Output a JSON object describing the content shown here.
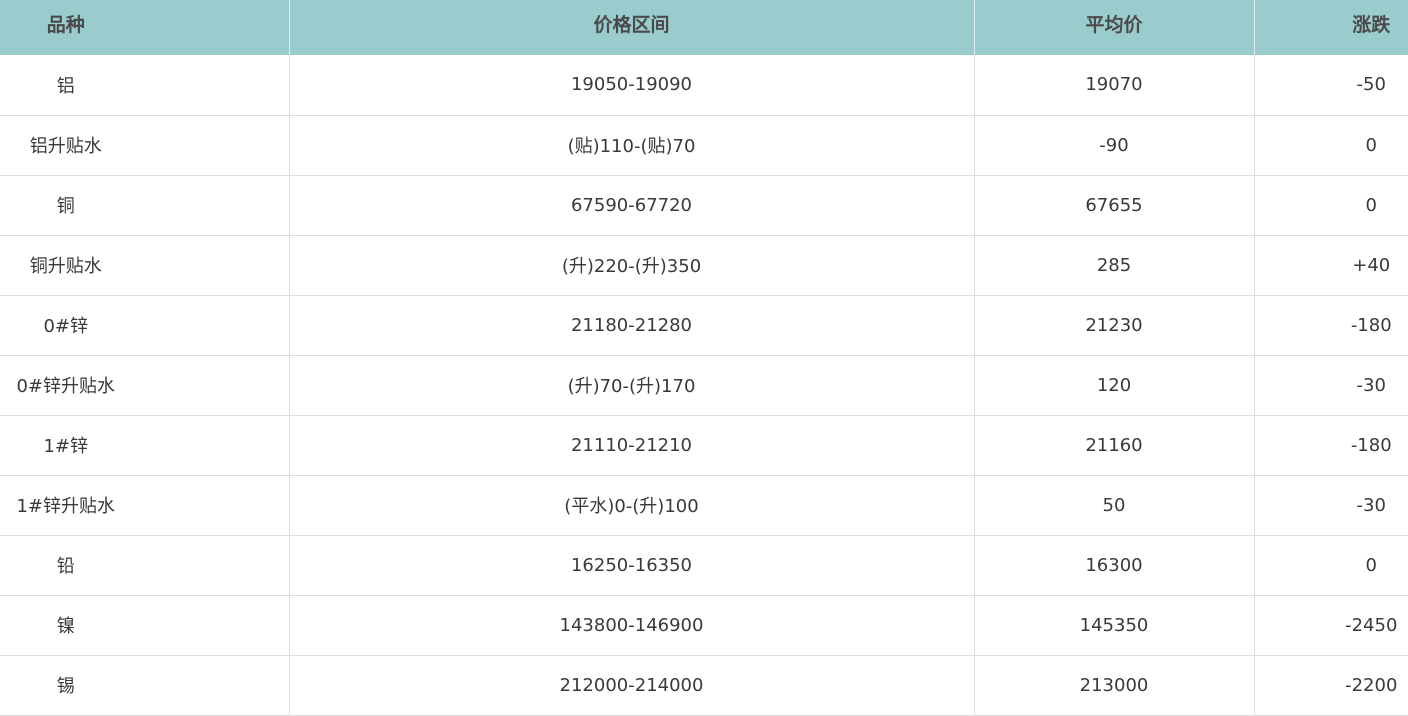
{
  "table": {
    "headers": [
      "品种",
      "价格区间",
      "平均价",
      "涨跌"
    ],
    "rows": [
      [
        "铝",
        "19050-19090",
        "19070",
        "-50"
      ],
      [
        "铝升贴水",
        "(贴)110-(贴)70",
        "-90",
        "0"
      ],
      [
        "铜",
        "67590-67720",
        "67655",
        "0"
      ],
      [
        "铜升贴水",
        "(升)220-(升)350",
        "285",
        "+40"
      ],
      [
        "0#锌",
        "21180-21280",
        "21230",
        "-180"
      ],
      [
        "0#锌升贴水",
        "(升)70-(升)170",
        "120",
        "-30"
      ],
      [
        "1#锌",
        "21110-21210",
        "21160",
        "-180"
      ],
      [
        "1#锌升贴水",
        "(平水)0-(升)100",
        "50",
        "-30"
      ],
      [
        "铅",
        "16250-16350",
        "16300",
        "0"
      ],
      [
        "镍",
        "143800-146900",
        "145350",
        "-2450"
      ],
      [
        "锡",
        "212000-214000",
        "213000",
        "-2200"
      ]
    ]
  },
  "colors": {
    "header_bg": "#9acccd",
    "border": "#dcdcdc"
  }
}
